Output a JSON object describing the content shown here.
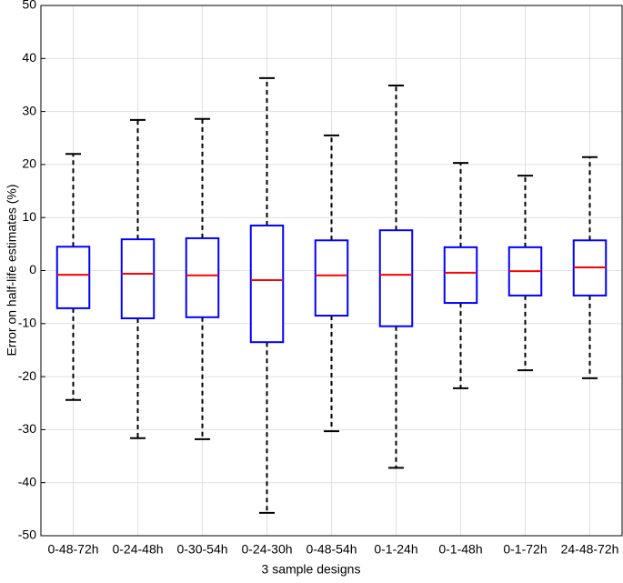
{
  "chart_data": {
    "type": "box",
    "xlabel": "3 sample designs",
    "ylabel": "Error on half-life estimates (%)",
    "categories": [
      "0-48-72h",
      "0-24-48h",
      "0-30-54h",
      "0-24-30h",
      "0-48-54h",
      "0-1-24h",
      "0-1-48h",
      "0-1-72h",
      "24-48-72h"
    ],
    "whislo": [
      -24.4,
      -31.6,
      -31.8,
      -45.7,
      -30.3,
      -37.2,
      -22.2,
      -18.8,
      -20.3
    ],
    "q1": [
      -7.1,
      -9.0,
      -8.8,
      -13.5,
      -8.5,
      -10.5,
      -6.1,
      -4.7,
      -4.7
    ],
    "median": [
      -0.8,
      -0.6,
      -0.9,
      -1.8,
      -0.9,
      -0.8,
      -0.4,
      -0.1,
      0.6
    ],
    "q3": [
      4.5,
      5.9,
      6.1,
      8.5,
      5.7,
      7.6,
      4.4,
      4.4,
      5.7
    ],
    "whishi": [
      22.0,
      28.4,
      28.6,
      36.3,
      25.5,
      34.9,
      20.3,
      17.9,
      21.4
    ],
    "box_color": "#0000ff",
    "median_color": "#ff0000",
    "whisker_color": "#000000",
    "ylim": [
      -50,
      50
    ],
    "yticks": [
      -50,
      -40,
      -30,
      -20,
      -10,
      0,
      10,
      20,
      30,
      40,
      50
    ],
    "grid": true
  }
}
